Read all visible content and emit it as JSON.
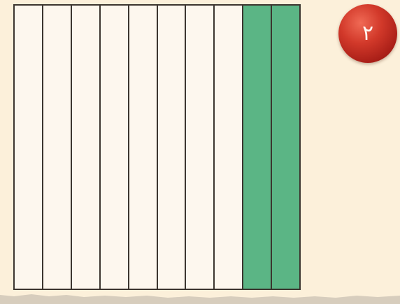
{
  "badge": {
    "label": "۲",
    "color": "#c92f24"
  },
  "fraction_grid": {
    "total_parts": 10,
    "shaded_parts": 2,
    "unshaded_color": "#fdf7ee",
    "shaded_color": "#5bb585",
    "line_color": "#3c352f",
    "strips": [
      {
        "shaded": false
      },
      {
        "shaded": false
      },
      {
        "shaded": false
      },
      {
        "shaded": false
      },
      {
        "shaded": false
      },
      {
        "shaded": false
      },
      {
        "shaded": false
      },
      {
        "shaded": false
      },
      {
        "shaded": true
      },
      {
        "shaded": true
      }
    ]
  },
  "background_color": "#fcf0da"
}
